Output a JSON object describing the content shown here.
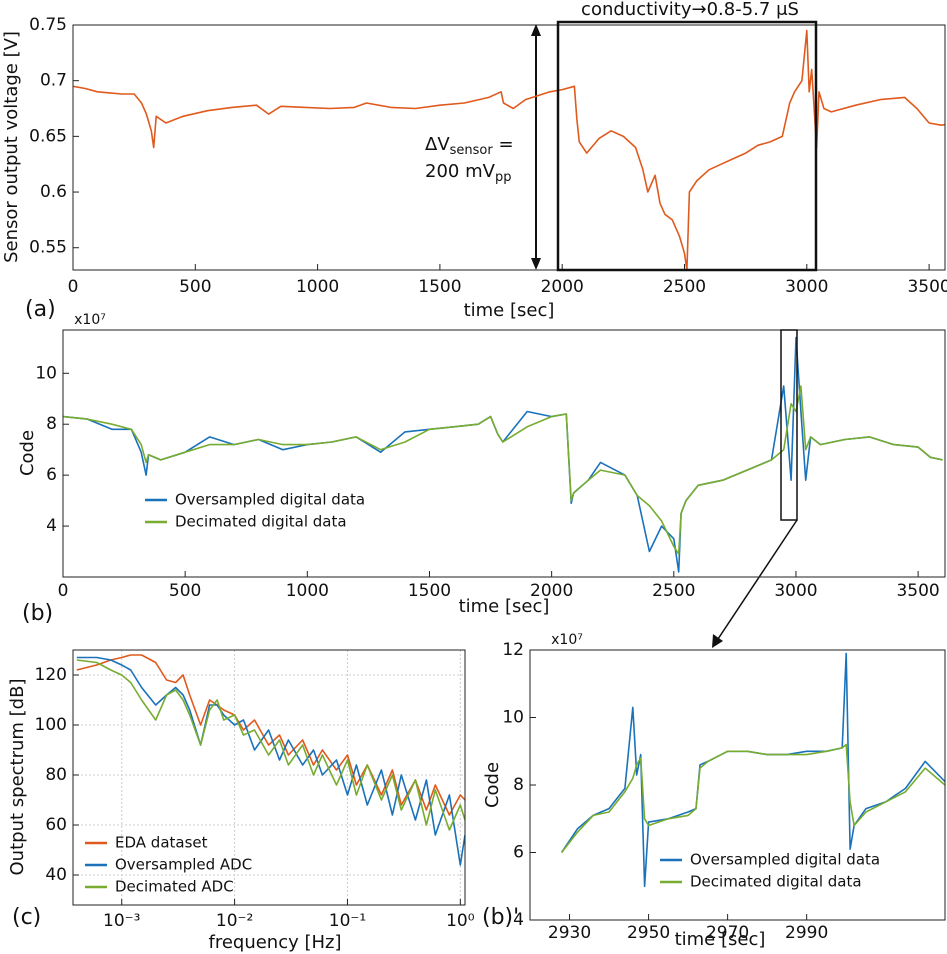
{
  "chart_data": [
    {
      "type": "line",
      "panel_label": "(a)",
      "x_label": "time [sec]",
      "y_label": "Sensor output voltage [V]",
      "annotations": {
        "conductivity": "conductivity→0.8-5.7 μS",
        "delta_v": "ΔV",
        "delta_v_sub": "sensor",
        "delta_v_eq": " =",
        "amplitude": "200 mV",
        "amplitude_sub": "pp"
      },
      "x": [
        0,
        50,
        100,
        150,
        200,
        250,
        280,
        300,
        320,
        330,
        340,
        380,
        450,
        550,
        650,
        750,
        800,
        850,
        950,
        1050,
        1150,
        1200,
        1300,
        1400,
        1500,
        1600,
        1700,
        1750,
        1760,
        1800,
        1850,
        1950,
        2000,
        2050,
        2060,
        2070,
        2100,
        2150,
        2200,
        2250,
        2300,
        2330,
        2350,
        2380,
        2400,
        2420,
        2450,
        2480,
        2500,
        2510,
        2520,
        2550,
        2600,
        2650,
        2700,
        2750,
        2800,
        2850,
        2900,
        2930,
        2950,
        2980,
        3000,
        3010,
        3020,
        3040,
        3050,
        3070,
        3100,
        3200,
        3300,
        3400,
        3450,
        3500,
        3550,
        3600
      ],
      "values": [
        0.695,
        0.693,
        0.69,
        0.689,
        0.688,
        0.688,
        0.68,
        0.67,
        0.655,
        0.64,
        0.668,
        0.662,
        0.668,
        0.673,
        0.676,
        0.678,
        0.67,
        0.677,
        0.676,
        0.675,
        0.676,
        0.68,
        0.676,
        0.675,
        0.678,
        0.68,
        0.685,
        0.69,
        0.68,
        0.675,
        0.683,
        0.69,
        0.692,
        0.695,
        0.665,
        0.645,
        0.635,
        0.648,
        0.655,
        0.65,
        0.64,
        0.62,
        0.6,
        0.615,
        0.59,
        0.58,
        0.575,
        0.56,
        0.545,
        0.53,
        0.6,
        0.61,
        0.62,
        0.625,
        0.63,
        0.635,
        0.642,
        0.645,
        0.65,
        0.68,
        0.69,
        0.7,
        0.745,
        0.69,
        0.71,
        0.64,
        0.69,
        0.675,
        0.672,
        0.678,
        0.683,
        0.685,
        0.675,
        0.662,
        0.66,
        0.662
      ],
      "color": "#e05a1e",
      "xlim": [
        0,
        3565
      ],
      "ylim": [
        0.53,
        0.75
      ],
      "xticks": [
        0,
        500,
        1000,
        1500,
        2000,
        2500,
        3000,
        3500
      ],
      "yticks": [
        0.55,
        0.6,
        0.65,
        0.7,
        0.75
      ]
    },
    {
      "type": "line",
      "panel_label": "(b)",
      "x_label": "time [sec]",
      "y_label": "Code",
      "y_multiplier": "x10⁷",
      "x": [
        0,
        100,
        200,
        280,
        320,
        340,
        350,
        400,
        500,
        600,
        700,
        800,
        900,
        1000,
        1100,
        1200,
        1300,
        1400,
        1500,
        1600,
        1700,
        1750,
        1780,
        1800,
        1900,
        2000,
        2060,
        2080,
        2090,
        2150,
        2200,
        2300,
        2350,
        2400,
        2450,
        2500,
        2520,
        2530,
        2550,
        2600,
        2700,
        2800,
        2900,
        2950,
        2980,
        3000,
        3020,
        3040,
        3060,
        3100,
        3200,
        3300,
        3400,
        3500,
        3550,
        3600
      ],
      "series": [
        {
          "name": "Oversampled digital data",
          "color": "#1a72bb",
          "values": [
            8.3,
            8.2,
            7.8,
            7.8,
            6.9,
            6.0,
            6.8,
            6.6,
            6.9,
            7.5,
            7.2,
            7.4,
            7.0,
            7.2,
            7.3,
            7.5,
            6.9,
            7.7,
            7.8,
            7.9,
            8.0,
            8.3,
            7.6,
            7.3,
            8.5,
            8.3,
            8.4,
            4.9,
            5.3,
            5.8,
            6.5,
            6.0,
            5.2,
            3.0,
            4.0,
            3.5,
            2.2,
            4.5,
            5.0,
            5.6,
            5.8,
            6.2,
            6.6,
            9.5,
            5.8,
            11.4,
            8.5,
            5.8,
            7.5,
            7.2,
            7.4,
            7.5,
            7.2,
            7.1,
            6.7,
            6.6
          ]
        },
        {
          "name": "Decimated digital data",
          "color": "#77ac30",
          "values": [
            8.3,
            8.2,
            8.0,
            7.8,
            7.2,
            6.5,
            6.8,
            6.6,
            6.9,
            7.2,
            7.2,
            7.4,
            7.2,
            7.2,
            7.3,
            7.5,
            7.0,
            7.3,
            7.8,
            7.9,
            8.0,
            8.3,
            7.6,
            7.3,
            7.9,
            8.3,
            8.4,
            5.0,
            5.3,
            5.8,
            6.2,
            6.0,
            5.2,
            4.8,
            4.2,
            3.2,
            2.9,
            4.5,
            5.0,
            5.6,
            5.8,
            6.2,
            6.6,
            7.0,
            8.8,
            8.5,
            9.5,
            7.0,
            7.5,
            7.2,
            7.4,
            7.5,
            7.2,
            7.1,
            6.7,
            6.6
          ]
        }
      ],
      "xlim": [
        0,
        3610
      ],
      "ylim": [
        2,
        11.7
      ],
      "xticks": [
        0,
        500,
        1000,
        1500,
        2000,
        2500,
        3000,
        3500
      ],
      "yticks": [
        4,
        6,
        8,
        10
      ],
      "legend": "lower-left"
    },
    {
      "type": "line",
      "panel_label": "(c)",
      "x_label": "frequency [Hz]",
      "y_label": "Output spectrum [dB]",
      "log_x": true,
      "grid": true,
      "x": [
        0.0004,
        0.0006,
        0.0008,
        0.001,
        0.0012,
        0.0015,
        0.002,
        0.0025,
        0.003,
        0.0035,
        0.004,
        0.005,
        0.006,
        0.007,
        0.008,
        0.01,
        0.012,
        0.015,
        0.02,
        0.025,
        0.03,
        0.04,
        0.05,
        0.06,
        0.08,
        0.1,
        0.12,
        0.15,
        0.2,
        0.25,
        0.3,
        0.4,
        0.5,
        0.6,
        0.8,
        1.0,
        1.1
      ],
      "series": [
        {
          "name": "EDA dataset",
          "color": "#e05a1e",
          "values": [
            122,
            124,
            126,
            127,
            128,
            128,
            125,
            118,
            117,
            120,
            112,
            100,
            110,
            108,
            106,
            104,
            98,
            102,
            92,
            96,
            88,
            94,
            84,
            90,
            82,
            88,
            76,
            84,
            72,
            82,
            68,
            78,
            66,
            76,
            64,
            72,
            70
          ]
        },
        {
          "name": "Oversampled ADC",
          "color": "#1a72bb",
          "values": [
            127,
            127,
            126,
            124,
            122,
            115,
            108,
            112,
            115,
            112,
            106,
            92,
            108,
            108,
            104,
            100,
            102,
            90,
            98,
            86,
            94,
            84,
            90,
            80,
            86,
            72,
            84,
            68,
            82,
            64,
            80,
            62,
            78,
            56,
            72,
            44,
            56
          ]
        },
        {
          "name": "Decimated ADC",
          "color": "#77ac30",
          "values": [
            126,
            125,
            122,
            120,
            117,
            110,
            102,
            112,
            114,
            110,
            104,
            92,
            106,
            110,
            102,
            104,
            96,
            98,
            88,
            94,
            84,
            92,
            80,
            88,
            76,
            86,
            72,
            84,
            70,
            80,
            66,
            78,
            60,
            74,
            58,
            68,
            62
          ]
        }
      ],
      "xlim": [
        0.00037,
        1.1
      ],
      "ylim": [
        28,
        130
      ],
      "xticks": [
        {
          "value": 0.001,
          "label": "10⁻³"
        },
        {
          "value": 0.01,
          "label": "10⁻²"
        },
        {
          "value": 0.1,
          "label": "10⁻¹"
        },
        {
          "value": 1,
          "label": "10⁰"
        }
      ],
      "yticks": [
        40,
        60,
        80,
        100,
        120
      ],
      "legend": "lower-left"
    },
    {
      "type": "line",
      "panel_label": "(b)'",
      "x_label": "time [sec]",
      "y_label": "Code",
      "y_multiplier": "x10⁷",
      "x": [
        2928,
        2932,
        2936,
        2940,
        2944,
        2946,
        2947,
        2948,
        2949,
        2950,
        2955,
        2960,
        2962,
        2963,
        2965,
        2970,
        2975,
        2980,
        2985,
        2990,
        2995,
        2999,
        3000,
        3001,
        3002,
        3005,
        3010,
        3015,
        3020,
        3025
      ],
      "series": [
        {
          "name": "Oversampled digital data",
          "color": "#1a72bb",
          "values": [
            6.0,
            6.7,
            7.1,
            7.3,
            7.9,
            10.3,
            8.3,
            8.9,
            5.0,
            6.9,
            7.0,
            7.2,
            7.3,
            8.6,
            8.7,
            9.0,
            9.0,
            8.9,
            8.9,
            9.0,
            9.0,
            9.1,
            11.9,
            6.1,
            6.8,
            7.3,
            7.5,
            7.9,
            8.7,
            8.1
          ]
        },
        {
          "name": "Decimated digital data",
          "color": "#77ac30",
          "values": [
            6.0,
            6.6,
            7.1,
            7.2,
            7.8,
            8.2,
            8.6,
            8.8,
            7.0,
            6.8,
            7.0,
            7.1,
            7.3,
            8.5,
            8.7,
            9.0,
            9.0,
            8.9,
            8.9,
            8.9,
            9.0,
            9.1,
            9.2,
            7.5,
            6.8,
            7.2,
            7.5,
            7.8,
            8.5,
            8.0
          ]
        }
      ],
      "xlim": [
        2920,
        3025
      ],
      "ylim": [
        4,
        12
      ],
      "xticks": [
        2930,
        2950,
        2970,
        2990
      ],
      "yticks": [
        4,
        6,
        8,
        10,
        12
      ],
      "legend": "lower-right"
    }
  ]
}
